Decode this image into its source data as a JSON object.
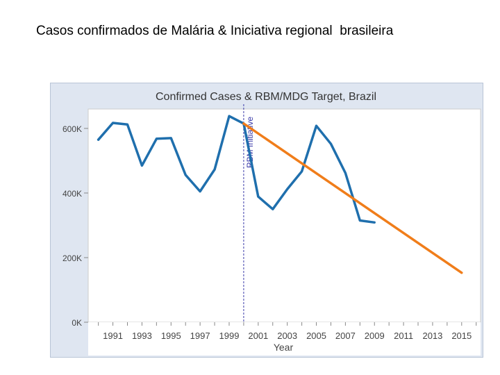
{
  "page": {
    "title": "Casos confirmados de Malária & Iniciativa regional  brasileira"
  },
  "chart_data": {
    "type": "line",
    "title": "Confirmed Cases & RBM/MDG Target, Brazil",
    "xlabel": "Year",
    "ylabel": "",
    "xlim": [
      1989.3,
      2016.3
    ],
    "ylim": [
      0,
      660000
    ],
    "x_ticks": [
      1991,
      1993,
      1995,
      1997,
      1999,
      2001,
      2003,
      2005,
      2007,
      2009,
      2011,
      2013,
      2015
    ],
    "x_tick_labels": [
      "1991",
      "1993",
      "1995",
      "1997",
      "1999",
      "2001",
      "2003",
      "2005",
      "2007",
      "2009",
      "2011",
      "2013",
      "2015"
    ],
    "y_ticks": [
      0,
      200000,
      400000,
      600000
    ],
    "y_tick_labels": [
      "0K",
      "200K",
      "400K",
      "600K"
    ],
    "grid": false,
    "series": [
      {
        "name": "",
        "color": "#1f6fad",
        "x": [
          1990,
          1991,
          1992,
          1993,
          1994,
          1995,
          1996,
          1997,
          1998,
          1999,
          2000,
          2001,
          2002,
          2003,
          2004,
          2005,
          2006,
          2007,
          2008,
          2009
        ],
        "values": [
          565000,
          617000,
          612000,
          485000,
          568000,
          570000,
          456000,
          405000,
          473000,
          638000,
          615000,
          389000,
          350000,
          412000,
          467000,
          608000,
          552000,
          462000,
          315000,
          309000
        ]
      },
      {
        "name": "",
        "color": "#f07d1a",
        "x": [
          2000,
          2015
        ],
        "values": [
          615000,
          153000
        ]
      }
    ],
    "annotations": [
      {
        "text": "RBM Initiative",
        "x": 2000,
        "color": "#3a3aa8"
      }
    ]
  }
}
